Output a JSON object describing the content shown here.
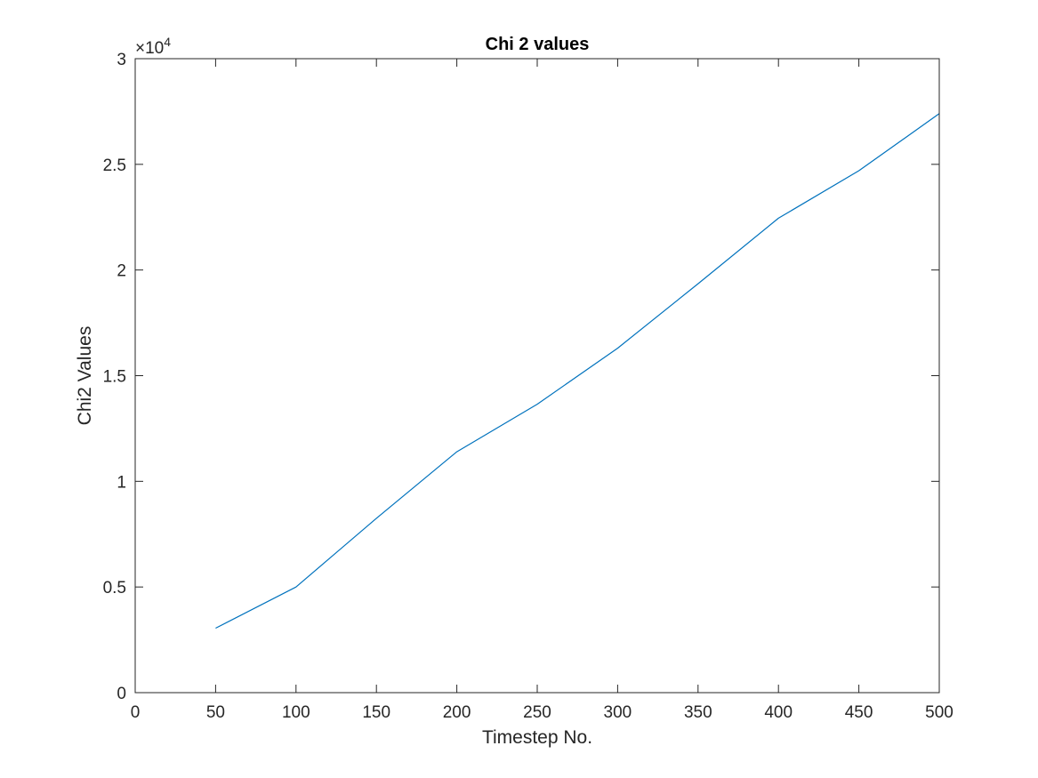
{
  "chart_data": {
    "type": "line",
    "title": "Chi 2 values",
    "xlabel": "Timestep No.",
    "ylabel": "Chi2 Values",
    "xlim": [
      0,
      500
    ],
    "ylim": [
      0,
      30000
    ],
    "xticks": [
      "0",
      "50",
      "100",
      "150",
      "200",
      "250",
      "300",
      "350",
      "400",
      "450",
      "500"
    ],
    "yticks": [
      "0",
      "0.5",
      "1",
      "1.5",
      "2",
      "2.5",
      "3"
    ],
    "y_multiplier_base": "×10",
    "y_multiplier_exp": "4",
    "grid": false,
    "box": true,
    "series": [
      {
        "color": "#0072BD",
        "x": [
          50,
          100,
          150,
          200,
          250,
          300,
          350,
          400,
          450,
          500
        ],
        "y": [
          3050,
          5000,
          8250,
          11400,
          13650,
          16300,
          19350,
          22450,
          24700,
          27400
        ]
      }
    ]
  }
}
